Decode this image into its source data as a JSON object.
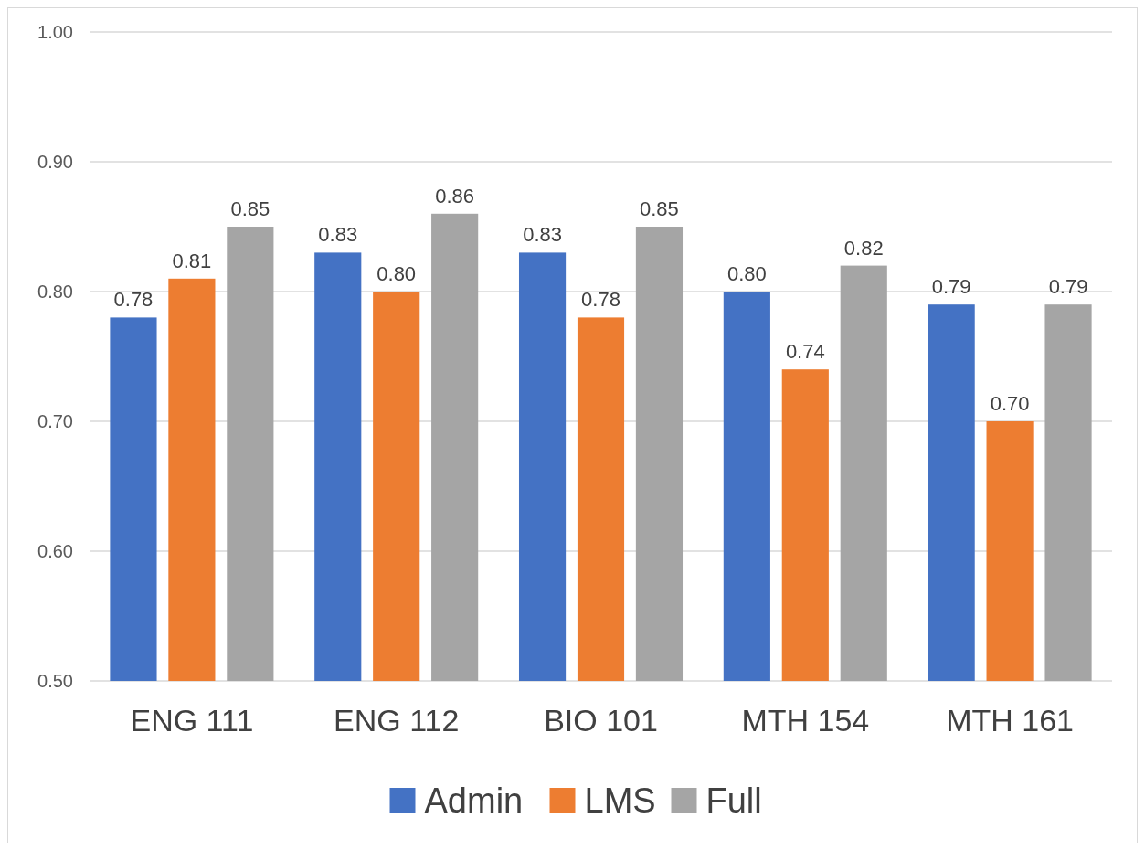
{
  "chart_data": {
    "type": "bar",
    "categories": [
      "ENG 111",
      "ENG 112",
      "BIO 101",
      "MTH 154",
      "MTH 161"
    ],
    "series": [
      {
        "name": "Admin",
        "color": "#4472c4",
        "values": [
          0.78,
          0.83,
          0.83,
          0.8,
          0.79
        ],
        "value_labels": [
          "0.78",
          "0.83",
          "0.83",
          "0.80",
          "0.79"
        ]
      },
      {
        "name": "LMS",
        "color": "#ed7d31",
        "values": [
          0.81,
          0.8,
          0.78,
          0.74,
          0.7
        ],
        "value_labels": [
          "0.81",
          "0.80",
          "0.78",
          "0.74",
          "0.70"
        ]
      },
      {
        "name": "Full",
        "color": "#a5a5a5",
        "values": [
          0.85,
          0.86,
          0.85,
          0.82,
          0.79
        ],
        "value_labels": [
          "0.85",
          "0.86",
          "0.85",
          "0.82",
          "0.79"
        ]
      }
    ],
    "ylim": [
      0.5,
      1.0
    ],
    "yticks": [
      {
        "value": 0.5,
        "label": "0.50"
      },
      {
        "value": 0.6,
        "label": "0.60"
      },
      {
        "value": 0.7,
        "label": "0.70"
      },
      {
        "value": 0.8,
        "label": "0.80"
      },
      {
        "value": 0.9,
        "label": "0.90"
      },
      {
        "value": 1.0,
        "label": "1.00"
      }
    ],
    "grid": "y",
    "legend": "bottom"
  }
}
